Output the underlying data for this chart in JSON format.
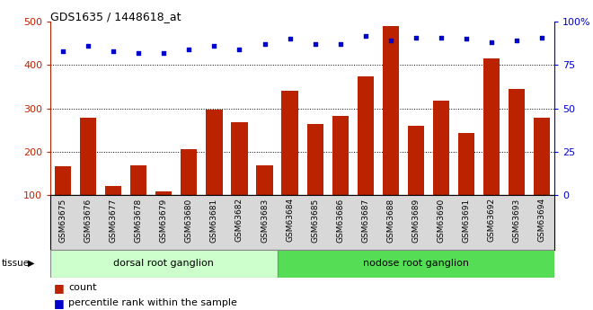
{
  "title": "GDS1635 / 1448618_at",
  "categories": [
    "GSM63675",
    "GSM63676",
    "GSM63677",
    "GSM63678",
    "GSM63679",
    "GSM63680",
    "GSM63681",
    "GSM63682",
    "GSM63683",
    "GSM63684",
    "GSM63685",
    "GSM63686",
    "GSM63687",
    "GSM63688",
    "GSM63689",
    "GSM63690",
    "GSM63691",
    "GSM63692",
    "GSM63693",
    "GSM63694"
  ],
  "counts": [
    168,
    278,
    122,
    170,
    108,
    207,
    297,
    268,
    170,
    340,
    265,
    283,
    375,
    490,
    260,
    318,
    244,
    415,
    346,
    278
  ],
  "percentiles": [
    83,
    86,
    83,
    82,
    82,
    84,
    86,
    84,
    87,
    90,
    87,
    87,
    92,
    89,
    91,
    91,
    90,
    88,
    89,
    91
  ],
  "group1_label": "dorsal root ganglion",
  "group2_label": "nodose root ganglion",
  "group1_count": 9,
  "group2_count": 11,
  "group1_color": "#ccffcc",
  "group2_color": "#55dd55",
  "bar_color": "#bb2200",
  "dot_color": "#0000cc",
  "ylim_left": [
    100,
    500
  ],
  "ylim_right": [
    0,
    100
  ],
  "yticks_left": [
    100,
    200,
    300,
    400,
    500
  ],
  "yticks_right": [
    0,
    25,
    50,
    75,
    100
  ],
  "grid_values": [
    200,
    300,
    400
  ],
  "tissue_label": "tissue",
  "legend_count_label": "count",
  "legend_pct_label": "percentile rank within the sample",
  "bg_gray": "#d8d8d8"
}
